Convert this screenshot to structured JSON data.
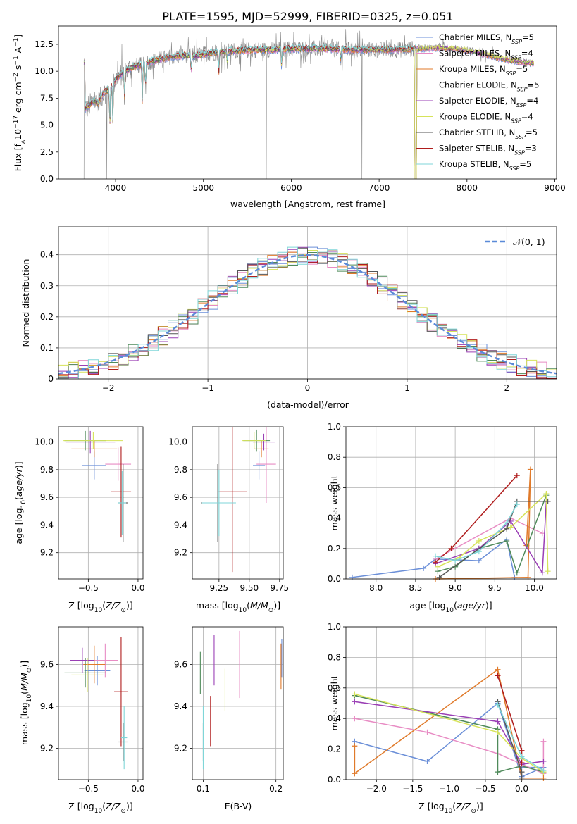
{
  "title": "PLATE=1595, MJD=52999, FIBERID=0325, z=0.051",
  "colors": {
    "Chabrier MILES": "#6b8fd8",
    "Salpeter MILES": "#e88cc4",
    "Kroupa MILES": "#e07a2a",
    "Chabrier ELODIE": "#4f8a5a",
    "Salpeter ELODIE": "#9a3fb5",
    "Kroupa ELODIE": "#d6e35a",
    "Chabrier STELIB": "#555555",
    "Salpeter STELIB": "#b01d1d",
    "Kroupa STELIB": "#7fd6d8",
    "data": "#8a8a8a",
    "gaussian": "#5a8ad8"
  },
  "chart_data": [
    {
      "id": "spectrum",
      "type": "line",
      "xlabel": "wavelength [Angstrom, rest frame]",
      "ylabel": "Flux [f_λ 10^-17 erg cm^-2 s^-1 A^-1]",
      "xlim": [
        3350,
        9020
      ],
      "ylim": [
        0,
        14.2
      ],
      "xticks": [
        4000,
        5000,
        6000,
        7000,
        8000,
        9000
      ],
      "yticks": [
        0.0,
        2.5,
        5.0,
        7.5,
        10.0,
        12.5
      ],
      "legend_position": "right",
      "legend": [
        {
          "label": "Chabrier MILES, N",
          "sub": "SSP",
          "tail": "=5"
        },
        {
          "label": "Salpeter MILES, N",
          "sub": "SSP",
          "tail": "=4"
        },
        {
          "label": "Kroupa MILES, N",
          "sub": "SSP",
          "tail": "=5"
        },
        {
          "label": "Chabrier ELODIE, N",
          "sub": "SSP",
          "tail": "=5"
        },
        {
          "label": "Salpeter ELODIE, N",
          "sub": "SSP",
          "tail": "=4"
        },
        {
          "label": "Kroupa ELODIE, N",
          "sub": "SSP",
          "tail": "=4"
        },
        {
          "label": "Chabrier STELIB, N",
          "sub": "SSP",
          "tail": "=5"
        },
        {
          "label": "Salpeter STELIB, N",
          "sub": "SSP",
          "tail": "=3"
        },
        {
          "label": "Kroupa STELIB, N",
          "sub": "SSP",
          "tail": "=5"
        }
      ],
      "data_continuum": [
        [
          3650,
          6.5
        ],
        [
          3700,
          6.8
        ],
        [
          3750,
          7.2
        ],
        [
          3800,
          7.0
        ],
        [
          3850,
          7.8
        ],
        [
          3900,
          8.2
        ],
        [
          3950,
          8.6
        ],
        [
          4000,
          9.2
        ],
        [
          4100,
          10.0
        ],
        [
          4200,
          10.4
        ],
        [
          4300,
          10.6
        ],
        [
          4400,
          10.9
        ],
        [
          4500,
          11.1
        ],
        [
          4600,
          11.3
        ],
        [
          4700,
          11.4
        ],
        [
          4800,
          11.5
        ],
        [
          4900,
          11.4
        ],
        [
          5000,
          11.6
        ],
        [
          5200,
          11.8
        ],
        [
          5400,
          11.9
        ],
        [
          5600,
          12.0
        ],
        [
          5800,
          12.0
        ],
        [
          6000,
          12.1
        ],
        [
          6200,
          12.1
        ],
        [
          6400,
          12.1
        ],
        [
          6600,
          12.0
        ],
        [
          6800,
          12.0
        ],
        [
          7000,
          12.0
        ],
        [
          7200,
          12.0
        ],
        [
          7400,
          12.1
        ],
        [
          7600,
          12.2
        ],
        [
          7800,
          12.2
        ],
        [
          8000,
          12.0
        ],
        [
          8200,
          11.6
        ],
        [
          8400,
          11.2
        ],
        [
          8600,
          10.9
        ],
        [
          8750,
          10.8
        ]
      ],
      "absorption_lines": [
        {
          "x": 3934,
          "depth": 0.45
        },
        {
          "x": 3969,
          "depth": 0.45
        },
        {
          "x": 4102,
          "depth": 0.3
        },
        {
          "x": 4304,
          "depth": 0.35
        },
        {
          "x": 4341,
          "depth": 0.25
        },
        {
          "x": 4861,
          "depth": 0.15
        },
        {
          "x": 5175,
          "depth": 0.18
        },
        {
          "x": 5270,
          "depth": 0.1
        },
        {
          "x": 5890,
          "depth": 0.15
        },
        {
          "x": 6563,
          "depth": 0.1
        }
      ],
      "dropouts": [
        3640,
        3900,
        5715,
        6805,
        7420
      ]
    },
    {
      "id": "residual_histogram",
      "type": "bar",
      "xlabel": "(data-model)/error",
      "ylabel": "Normed distribution",
      "xlim": [
        -2.5,
        2.5
      ],
      "ylim": [
        0,
        0.49
      ],
      "xticks": [
        -2,
        -1,
        0,
        1,
        2
      ],
      "yticks": [
        0.0,
        0.1,
        0.2,
        0.3,
        0.4
      ],
      "legend_label": "𝒩(0, 1)",
      "legend_position": "upper right",
      "bin_width": 0.1
    },
    {
      "id": "age_vs_Z",
      "type": "scatter",
      "xlabel": "Z [log10(Z/Z⊙)]",
      "ylabel": "age [log10(age/yr)]",
      "xlim": [
        -0.8,
        0.05
      ],
      "ylim": [
        9.01,
        10.11
      ],
      "xticks": [
        -0.5,
        0.0
      ],
      "yticks": [
        9.2,
        9.4,
        9.6,
        9.8,
        10.0
      ],
      "points": [
        {
          "model": "Chabrier MILES",
          "x": -0.44,
          "y": 9.83,
          "xerr": 0.12,
          "yerr": 0.1
        },
        {
          "model": "Salpeter MILES",
          "x": -0.2,
          "y": 9.84,
          "xerr": 0.13,
          "yerr": 0.12
        },
        {
          "model": "Kroupa MILES",
          "x": -0.44,
          "y": 9.95,
          "xerr": 0.23,
          "yerr": 0.06
        },
        {
          "model": "Chabrier ELODIE",
          "x": -0.53,
          "y": 10.01,
          "xerr": 0.21,
          "yerr": 0.07
        },
        {
          "model": "Salpeter ELODIE",
          "x": -0.48,
          "y": 10.0,
          "xerr": 0.25,
          "yerr": 0.08
        },
        {
          "model": "Kroupa ELODIE",
          "x": -0.45,
          "y": 10.01,
          "xerr": 0.3,
          "yerr": 0.06
        },
        {
          "model": "Chabrier STELIB",
          "x": -0.15,
          "y": 9.56,
          "xerr": 0.05,
          "yerr": 0.28
        },
        {
          "model": "Salpeter STELIB",
          "x": -0.17,
          "y": 9.64,
          "xerr": 0.1,
          "yerr": 0.33
        },
        {
          "model": "Kroupa STELIB",
          "x": -0.16,
          "y": 9.56,
          "xerr": 0.04,
          "yerr": 0.23
        }
      ]
    },
    {
      "id": "age_vs_mass",
      "type": "scatter",
      "xlabel": "mass [log10(M/M⊙)]",
      "ylabel": "",
      "xlim": [
        9.03,
        9.78
      ],
      "ylim": [
        9.01,
        10.11
      ],
      "xticks": [
        9.25,
        9.5,
        9.75
      ],
      "yticks": [
        9.2,
        9.4,
        9.6,
        9.8,
        10.0
      ],
      "points": [
        {
          "model": "Chabrier MILES",
          "x": 9.58,
          "y": 9.83,
          "xerr": 0.05,
          "yerr": 0.1
        },
        {
          "model": "Salpeter MILES",
          "x": 9.64,
          "y": 9.84,
          "xerr": 0.08,
          "yerr": 0.28
        },
        {
          "model": "Kroupa MILES",
          "x": 9.6,
          "y": 9.95,
          "xerr": 0.06,
          "yerr": 0.06
        },
        {
          "model": "Chabrier ELODIE",
          "x": 9.56,
          "y": 10.01,
          "xerr": 0.11,
          "yerr": 0.08
        },
        {
          "model": "Salpeter ELODIE",
          "x": 9.62,
          "y": 10.0,
          "xerr": 0.09,
          "yerr": 0.06
        },
        {
          "model": "Kroupa ELODIE",
          "x": 9.54,
          "y": 10.01,
          "xerr": 0.1,
          "yerr": 0.06
        },
        {
          "model": "Chabrier STELIB",
          "x": 9.24,
          "y": 9.56,
          "xerr": 0.14,
          "yerr": 0.28
        },
        {
          "model": "Salpeter STELIB",
          "x": 9.36,
          "y": 9.64,
          "xerr": 0.12,
          "yerr": 0.58
        },
        {
          "model": "Kroupa STELIB",
          "x": 9.25,
          "y": 9.56,
          "xerr": 0.14,
          "yerr": 0.24
        }
      ]
    },
    {
      "id": "weight_vs_age",
      "type": "line",
      "xlabel": "age [log10(age/yr)]",
      "ylabel": "mass weight",
      "xlim": [
        7.62,
        10.28
      ],
      "ylim": [
        0,
        1.0
      ],
      "xticks": [
        8.0,
        8.5,
        9.0,
        9.5,
        10.0
      ],
      "yticks": [
        0.0,
        0.2,
        0.4,
        0.6,
        0.8,
        1.0
      ],
      "series": [
        {
          "model": "Chabrier MILES",
          "x": [
            7.7,
            8.6,
            8.75,
            9.3,
            9.65,
            9.75
          ],
          "y": [
            0.01,
            0.07,
            0.13,
            0.12,
            0.26,
            0.01
          ]
        },
        {
          "model": "Salpeter MILES",
          "x": [
            8.75,
            9.7,
            10.1
          ],
          "y": [
            0.13,
            0.4,
            0.3
          ]
        },
        {
          "model": "Kroupa MILES",
          "x": [
            8.75,
            9.92,
            9.95,
            9.9
          ],
          "y": [
            0.0,
            0.01,
            0.72,
            0.22
          ]
        },
        {
          "model": "Chabrier ELODIE",
          "x": [
            8.78,
            9.0,
            9.3,
            9.65,
            9.78,
            10.15
          ],
          "y": [
            0.05,
            0.08,
            0.2,
            0.25,
            0.04,
            0.55
          ]
        },
        {
          "model": "Salpeter ELODIE",
          "x": [
            8.75,
            9.3,
            9.7,
            10.1,
            10.15
          ],
          "y": [
            0.1,
            0.2,
            0.38,
            0.04,
            0.51
          ]
        },
        {
          "model": "Kroupa ELODIE",
          "x": [
            8.78,
            9.05,
            9.3,
            9.7,
            10.15,
            10.17
          ],
          "y": [
            0.08,
            0.14,
            0.25,
            0.34,
            0.56,
            0.05
          ]
        },
        {
          "model": "Chabrier STELIB",
          "x": [
            8.8,
            9.65,
            9.78,
            10.17
          ],
          "y": [
            0.01,
            0.33,
            0.51,
            0.51
          ]
        },
        {
          "model": "Salpeter STELIB",
          "x": [
            8.75,
            8.95,
            9.78
          ],
          "y": [
            0.11,
            0.2,
            0.68
          ]
        },
        {
          "model": "Kroupa STELIB",
          "x": [
            8.75,
            9.0,
            9.3,
            9.65,
            9.78
          ],
          "y": [
            0.15,
            0.12,
            0.18,
            0.37,
            0.49
          ]
        }
      ]
    },
    {
      "id": "mass_vs_Z",
      "type": "scatter",
      "xlabel": "Z [log10(Z/Z⊙)]",
      "ylabel": "mass [log10(M/M⊙)]",
      "xlim": [
        -0.8,
        0.05
      ],
      "ylim": [
        9.05,
        9.78
      ],
      "xticks": [
        -0.5,
        0.0
      ],
      "yticks": [
        9.2,
        9.4,
        9.6
      ],
      "points": [
        {
          "model": "Chabrier MILES",
          "x": -0.41,
          "y": 9.57,
          "xerr": 0.13,
          "yerr": 0.07
        },
        {
          "model": "Salpeter MILES",
          "x": -0.33,
          "y": 9.62,
          "xerr": 0.13,
          "yerr": 0.08
        },
        {
          "model": "Kroupa MILES",
          "x": -0.44,
          "y": 9.6,
          "xerr": 0.11,
          "yerr": 0.09
        },
        {
          "model": "Chabrier ELODIE",
          "x": -0.53,
          "y": 9.56,
          "xerr": 0.21,
          "yerr": 0.07
        },
        {
          "model": "Salpeter ELODIE",
          "x": -0.56,
          "y": 9.62,
          "xerr": 0.12,
          "yerr": 0.06
        },
        {
          "model": "Kroupa ELODIE",
          "x": -0.51,
          "y": 9.55,
          "xerr": 0.16,
          "yerr": 0.08
        },
        {
          "model": "Chabrier STELIB",
          "x": -0.15,
          "y": 9.23,
          "xerr": 0.05,
          "yerr": 0.09
        },
        {
          "model": "Salpeter STELIB",
          "x": -0.17,
          "y": 9.47,
          "xerr": 0.07,
          "yerr": 0.26
        },
        {
          "model": "Kroupa STELIB",
          "x": -0.14,
          "y": 9.25,
          "xerr": 0.03,
          "yerr": 0.15
        }
      ]
    },
    {
      "id": "mass_vs_ebv",
      "type": "scatter",
      "xlabel": "E(B-V)",
      "ylabel": "",
      "xlim": [
        0.085,
        0.21
      ],
      "ylim": [
        9.05,
        9.78
      ],
      "xticks": [
        0.1,
        0.2
      ],
      "yticks": [
        9.2,
        9.4,
        9.6
      ],
      "points": [
        {
          "model": "Chabrier MILES",
          "x": 0.208,
          "y": 9.63,
          "xerr": 0.0,
          "yerr": 0.09
        },
        {
          "model": "Salpeter MILES",
          "x": 0.15,
          "y": 9.6,
          "xerr": 0.0,
          "yerr": 0.16
        },
        {
          "model": "Kroupa MILES",
          "x": 0.207,
          "y": 9.59,
          "xerr": 0.0,
          "yerr": 0.11
        },
        {
          "model": "Chabrier ELODIE",
          "x": 0.096,
          "y": 9.56,
          "xerr": 0.0,
          "yerr": 0.1
        },
        {
          "model": "Salpeter ELODIE",
          "x": 0.115,
          "y": 9.62,
          "xerr": 0.0,
          "yerr": 0.12
        },
        {
          "model": "Kroupa ELODIE",
          "x": 0.13,
          "y": 9.48,
          "xerr": 0.0,
          "yerr": 0.1
        },
        {
          "model": "Chabrier STELIB",
          "x": 0.1,
          "y": 9.23,
          "xerr": 0.0,
          "yerr": 0.09
        },
        {
          "model": "Salpeter STELIB",
          "x": 0.11,
          "y": 9.33,
          "xerr": 0.0,
          "yerr": 0.12
        },
        {
          "model": "Kroupa STELIB",
          "x": 0.1,
          "y": 9.25,
          "xerr": 0.0,
          "yerr": 0.15
        }
      ]
    },
    {
      "id": "weight_vs_Z",
      "type": "line",
      "xlabel": "Z [log10(Z/Z⊙)]",
      "ylabel": "mass weight",
      "xlim": [
        -2.42,
        0.48
      ],
      "ylim": [
        0,
        1.0
      ],
      "xticks": [
        -2.0,
        -1.5,
        -1.0,
        -0.5,
        0.0
      ],
      "yticks": [
        0.0,
        0.2,
        0.4,
        0.6,
        0.8,
        1.0
      ],
      "series": [
        {
          "model": "Chabrier MILES",
          "x": [
            -2.3,
            -1.3,
            -0.33,
            0.0,
            0.3,
            0.0
          ],
          "y": [
            0.25,
            0.12,
            0.5,
            0.02,
            0.08,
            0.08
          ]
        },
        {
          "model": "Salpeter MILES",
          "x": [
            -2.3,
            -1.3,
            -0.33,
            0.3,
            0.3
          ],
          "y": [
            0.4,
            0.31,
            0.17,
            0.04,
            0.25
          ]
        },
        {
          "model": "Kroupa MILES",
          "x": [
            -2.3,
            -2.3,
            -0.33,
            0.0,
            0.3
          ],
          "y": [
            0.22,
            0.04,
            0.72,
            0.01,
            0.01
          ]
        },
        {
          "model": "Chabrier ELODIE",
          "x": [
            -2.3,
            -0.33,
            -0.33,
            0.0,
            0.3
          ],
          "y": [
            0.55,
            0.33,
            0.05,
            0.09,
            0.05
          ]
        },
        {
          "model": "Salpeter ELODIE",
          "x": [
            -2.3,
            -0.33,
            0.0,
            0.3
          ],
          "y": [
            0.51,
            0.38,
            0.1,
            0.12
          ]
        },
        {
          "model": "Kroupa ELODIE",
          "x": [
            -2.3,
            -0.33,
            0.0,
            0.3
          ],
          "y": [
            0.56,
            0.31,
            0.14,
            0.05
          ]
        },
        {
          "model": "Chabrier STELIB",
          "x": [
            -0.33,
            0.0,
            0.0
          ],
          "y": [
            0.51,
            0.05,
            0.01
          ]
        },
        {
          "model": "Salpeter STELIB",
          "x": [
            -0.33,
            0.0,
            0.0
          ],
          "y": [
            0.68,
            0.19,
            0.11
          ]
        },
        {
          "model": "Kroupa STELIB",
          "x": [
            -0.33,
            0.0,
            0.3
          ],
          "y": [
            0.49,
            0.15,
            0.06
          ]
        }
      ]
    }
  ]
}
